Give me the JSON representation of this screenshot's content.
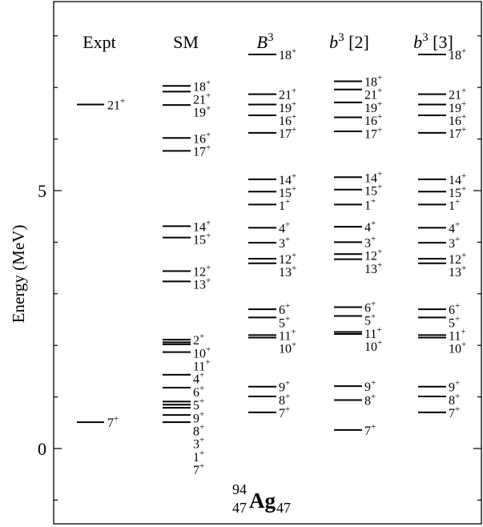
{
  "chart_data": {
    "type": "level_scheme",
    "title": "",
    "nucleus": {
      "A": "94",
      "Z": "47",
      "symbol": "Ag",
      "N": "47"
    },
    "ylabel": "Energy (MeV)",
    "ylim": [
      -1.4,
      8.6
    ],
    "yticks": [
      0,
      5
    ],
    "ytick_labels": [
      "0",
      "5"
    ],
    "columns": [
      {
        "header": "Expt",
        "header_base": "Expt",
        "header_sup": "",
        "header_suffix": "",
        "levels": [
          {
            "spin": "21",
            "parity": "+",
            "energy": 6.67
          },
          {
            "spin": "7",
            "parity": "+",
            "energy": 0.51
          }
        ]
      },
      {
        "header": "SM",
        "header_base": "SM",
        "header_sup": "",
        "header_suffix": "",
        "levels": [
          {
            "spin": "18",
            "parity": "+",
            "energy": 7.03
          },
          {
            "spin": "21",
            "parity": "+",
            "energy": 6.92
          },
          {
            "spin": "19",
            "parity": "+",
            "energy": 6.66
          },
          {
            "spin": "16",
            "parity": "+",
            "energy": 6.02
          },
          {
            "spin": "17",
            "parity": "+",
            "energy": 5.77
          },
          {
            "spin": "14",
            "parity": "+",
            "energy": 4.31
          },
          {
            "spin": "15",
            "parity": "+",
            "energy": 4.09
          },
          {
            "spin": "12",
            "parity": "+",
            "energy": 3.44
          },
          {
            "spin": "13",
            "parity": "+",
            "energy": 3.24
          },
          {
            "spin": "2",
            "parity": "+",
            "energy": 2.11
          },
          {
            "spin": "10",
            "parity": "+",
            "energy": 2.06
          },
          {
            "spin": "11",
            "parity": "+",
            "energy": 2.02
          },
          {
            "spin": "4",
            "parity": "+",
            "energy": 1.87
          },
          {
            "spin": "6",
            "parity": "+",
            "energy": 1.43
          },
          {
            "spin": "5",
            "parity": "+",
            "energy": 1.18
          },
          {
            "spin": "9",
            "parity": "+",
            "energy": 0.91
          },
          {
            "spin": "8",
            "parity": "+",
            "energy": 0.85
          },
          {
            "spin": "3",
            "parity": "+",
            "energy": 0.79
          },
          {
            "spin": "1",
            "parity": "+",
            "energy": 0.65
          },
          {
            "spin": "7",
            "parity": "+",
            "energy": 0.51
          }
        ]
      },
      {
        "header": "B3",
        "header_base": "B",
        "header_sup": "3",
        "header_suffix": "",
        "levels": [
          {
            "spin": "18",
            "parity": "+",
            "energy": 7.64
          },
          {
            "spin": "21",
            "parity": "+",
            "energy": 6.87
          },
          {
            "spin": "19",
            "parity": "+",
            "energy": 6.67
          },
          {
            "spin": "16",
            "parity": "+",
            "energy": 6.46
          },
          {
            "spin": "17",
            "parity": "+",
            "energy": 6.12
          },
          {
            "spin": "14",
            "parity": "+",
            "energy": 5.22
          },
          {
            "spin": "15",
            "parity": "+",
            "energy": 4.98
          },
          {
            "spin": "1",
            "parity": "+",
            "energy": 4.73
          },
          {
            "spin": "4",
            "parity": "+",
            "energy": 4.28
          },
          {
            "spin": "3",
            "parity": "+",
            "energy": 3.99
          },
          {
            "spin": "12",
            "parity": "+",
            "energy": 3.68
          },
          {
            "spin": "13",
            "parity": "+",
            "energy": 3.59
          },
          {
            "spin": "6",
            "parity": "+",
            "energy": 2.7
          },
          {
            "spin": "5",
            "parity": "+",
            "energy": 2.54
          },
          {
            "spin": "11",
            "parity": "+",
            "energy": 2.2
          },
          {
            "spin": "10",
            "parity": "+",
            "energy": 2.15
          },
          {
            "spin": "9",
            "parity": "+",
            "energy": 1.2
          },
          {
            "spin": "8",
            "parity": "+",
            "energy": 1.01
          },
          {
            "spin": "7",
            "parity": "+",
            "energy": 0.7
          }
        ]
      },
      {
        "header": "b3 [2]",
        "header_base": "b",
        "header_sup": "3",
        "header_suffix": " [2]",
        "levels": [
          {
            "spin": "18",
            "parity": "+",
            "energy": 7.12
          },
          {
            "spin": "21",
            "parity": "+",
            "energy": 6.96
          },
          {
            "spin": "19",
            "parity": "+",
            "energy": 6.71
          },
          {
            "spin": "16",
            "parity": "+",
            "energy": 6.42
          },
          {
            "spin": "17",
            "parity": "+",
            "energy": 6.15
          },
          {
            "spin": "14",
            "parity": "+",
            "energy": 5.26
          },
          {
            "spin": "15",
            "parity": "+",
            "energy": 5.02
          },
          {
            "spin": "1",
            "parity": "+",
            "energy": 4.73
          },
          {
            "spin": "4",
            "parity": "+",
            "energy": 4.3
          },
          {
            "spin": "3",
            "parity": "+",
            "energy": 4.0
          },
          {
            "spin": "12",
            "parity": "+",
            "energy": 3.77
          },
          {
            "spin": "13",
            "parity": "+",
            "energy": 3.67
          },
          {
            "spin": "6",
            "parity": "+",
            "energy": 2.74
          },
          {
            "spin": "5",
            "parity": "+",
            "energy": 2.57
          },
          {
            "spin": "11",
            "parity": "+",
            "energy": 2.26
          },
          {
            "spin": "10",
            "parity": "+",
            "energy": 2.22
          },
          {
            "spin": "9",
            "parity": "+",
            "energy": 1.21
          },
          {
            "spin": "8",
            "parity": "+",
            "energy": 0.94
          },
          {
            "spin": "7",
            "parity": "+",
            "energy": 0.36
          }
        ]
      },
      {
        "header": "b3 [3]",
        "header_base": "b",
        "header_sup": "3",
        "header_suffix": " [3]",
        "levels": [
          {
            "spin": "18",
            "parity": "+",
            "energy": 7.64
          },
          {
            "spin": "21",
            "parity": "+",
            "energy": 6.87
          },
          {
            "spin": "19",
            "parity": "+",
            "energy": 6.67
          },
          {
            "spin": "16",
            "parity": "+",
            "energy": 6.46
          },
          {
            "spin": "17",
            "parity": "+",
            "energy": 6.12
          },
          {
            "spin": "14",
            "parity": "+",
            "energy": 5.22
          },
          {
            "spin": "15",
            "parity": "+",
            "energy": 4.98
          },
          {
            "spin": "1",
            "parity": "+",
            "energy": 4.73
          },
          {
            "spin": "4",
            "parity": "+",
            "energy": 4.28
          },
          {
            "spin": "3",
            "parity": "+",
            "energy": 3.99
          },
          {
            "spin": "12",
            "parity": "+",
            "energy": 3.68
          },
          {
            "spin": "13",
            "parity": "+",
            "energy": 3.59
          },
          {
            "spin": "6",
            "parity": "+",
            "energy": 2.7
          },
          {
            "spin": "5",
            "parity": "+",
            "energy": 2.54
          },
          {
            "spin": "11",
            "parity": "+",
            "energy": 2.2
          },
          {
            "spin": "10",
            "parity": "+",
            "energy": 2.15
          },
          {
            "spin": "9",
            "parity": "+",
            "energy": 1.2
          },
          {
            "spin": "8",
            "parity": "+",
            "energy": 1.01
          },
          {
            "spin": "7",
            "parity": "+",
            "energy": 0.7
          }
        ]
      }
    ]
  }
}
